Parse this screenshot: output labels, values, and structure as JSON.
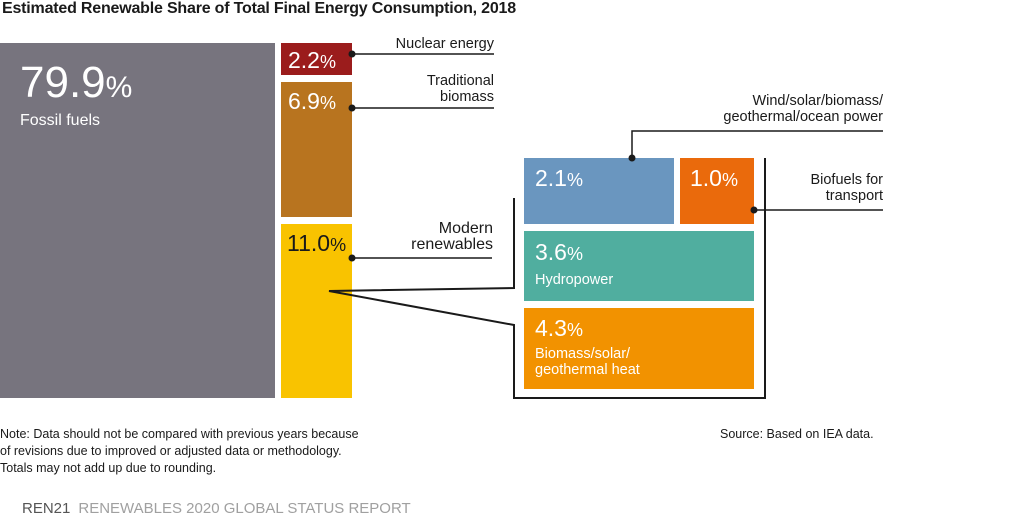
{
  "title": "Estimated Renewable Share of Total Final Energy Consumption, 2018",
  "chart_data": {
    "type": "treemap",
    "title": "Estimated Renewable Share of Total Final Energy Consumption, 2018",
    "segments": [
      {
        "name": "Fossil fuels",
        "value": 79.9,
        "value_label": "79.9",
        "color": "#77747e"
      },
      {
        "name": "Nuclear energy",
        "value": 2.2,
        "value_label": "2.2",
        "color": "#9b1c1c"
      },
      {
        "name": "Traditional biomass",
        "value": 6.9,
        "value_label": "6.9",
        "color": "#b8741f"
      },
      {
        "name": "Modern renewables",
        "value": 11.0,
        "value_label": "11.0",
        "color": "#f9c300",
        "breakdown": [
          {
            "name": "Wind/solar/biomass/geothermal/ocean power",
            "value": 2.1,
            "value_label": "2.1",
            "color": "#6a96bf"
          },
          {
            "name": "Biofuels for transport",
            "value": 1.0,
            "value_label": "1.0",
            "color": "#ea6a0c"
          },
          {
            "name": "Hydropower",
            "value": 3.6,
            "value_label": "3.6",
            "color": "#50ae9f"
          },
          {
            "name": "Biomass/solar/geothermal heat",
            "value": 4.3,
            "value_label": "4.3",
            "color": "#f29200"
          }
        ]
      }
    ],
    "unit": "%"
  },
  "labels": {
    "fossil": "Fossil fuels",
    "nuclear": "Nuclear energy",
    "trad1": "Traditional",
    "trad2": "biomass",
    "modern1": "Modern",
    "modern2": "renewables",
    "wind1": "Wind/solar/biomass/",
    "wind2": "geothermal/ocean power",
    "biofuel1": "Biofuels for",
    "biofuel2": "transport",
    "hydro": "Hydropower",
    "heat1": "Biomass/solar/",
    "heat2": "geothermal heat",
    "percent": "%"
  },
  "note": [
    "Note: Data should not be compared with previous years because",
    "of revisions due to improved or adjusted data or methodology.",
    "Totals may not add up due to rounding."
  ],
  "source": "Source: Based on IEA data.",
  "footer": {
    "brand": "REN21",
    "report": "RENEWABLES 2020 GLOBAL STATUS REPORT"
  }
}
